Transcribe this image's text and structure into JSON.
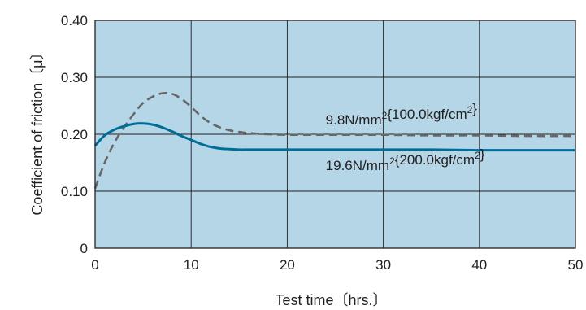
{
  "chart_data": {
    "type": "line",
    "xlabel": "Test time〔hrs.〕",
    "ylabel": "Coefficient of friction〔μ〕",
    "xlim": [
      0,
      50
    ],
    "ylim": [
      0,
      0.4
    ],
    "x_ticks": [
      0,
      10,
      20,
      30,
      40,
      50
    ],
    "x_tick_labels": [
      "0",
      "10",
      "20",
      "30",
      "40",
      "50"
    ],
    "y_ticks": [
      0,
      0.1,
      0.2,
      0.3,
      0.4
    ],
    "y_tick_labels": [
      "0",
      "0.10",
      "0.20",
      "0.30",
      "0.40"
    ],
    "grid": true,
    "background_color": "#b5d6e6",
    "series": [
      {
        "name": "9.8N/mm²{100.0kgf/cm²}",
        "style": "dashed",
        "color": "#666666",
        "x": [
          0,
          1,
          2,
          3,
          4,
          5,
          6,
          7,
          8,
          9,
          10,
          11,
          12,
          13,
          14,
          15,
          16,
          18,
          20,
          25,
          30,
          35,
          40,
          45,
          50
        ],
        "y": [
          0.105,
          0.15,
          0.185,
          0.212,
          0.235,
          0.255,
          0.266,
          0.272,
          0.271,
          0.262,
          0.248,
          0.232,
          0.22,
          0.212,
          0.207,
          0.204,
          0.202,
          0.2,
          0.199,
          0.199,
          0.199,
          0.198,
          0.198,
          0.197,
          0.197
        ]
      },
      {
        "name": "19.6N/mm²{200.0kgf/cm²}",
        "style": "solid",
        "color": "#006d97",
        "x": [
          0,
          1,
          2,
          3,
          4,
          5,
          6,
          7,
          8,
          9,
          10,
          11,
          12,
          13,
          14,
          15,
          16,
          18,
          20,
          25,
          30,
          35,
          40,
          45,
          50
        ],
        "y": [
          0.18,
          0.198,
          0.208,
          0.214,
          0.218,
          0.219,
          0.217,
          0.212,
          0.205,
          0.197,
          0.19,
          0.183,
          0.178,
          0.175,
          0.174,
          0.173,
          0.173,
          0.173,
          0.173,
          0.173,
          0.173,
          0.173,
          0.172,
          0.172,
          0.172
        ]
      }
    ],
    "annotations": [
      {
        "base": "9.8N/mm",
        "sup1": "2",
        "mid": "{100.0kgf/cm",
        "sup2": "2",
        "end": "}",
        "x": 24,
        "y": 0.217
      },
      {
        "base": "19.6N/mm",
        "sup1": "2",
        "mid": "{200.0kgf/cm",
        "sup2": "2",
        "end": "}",
        "x": 24,
        "y": 0.137
      }
    ]
  }
}
